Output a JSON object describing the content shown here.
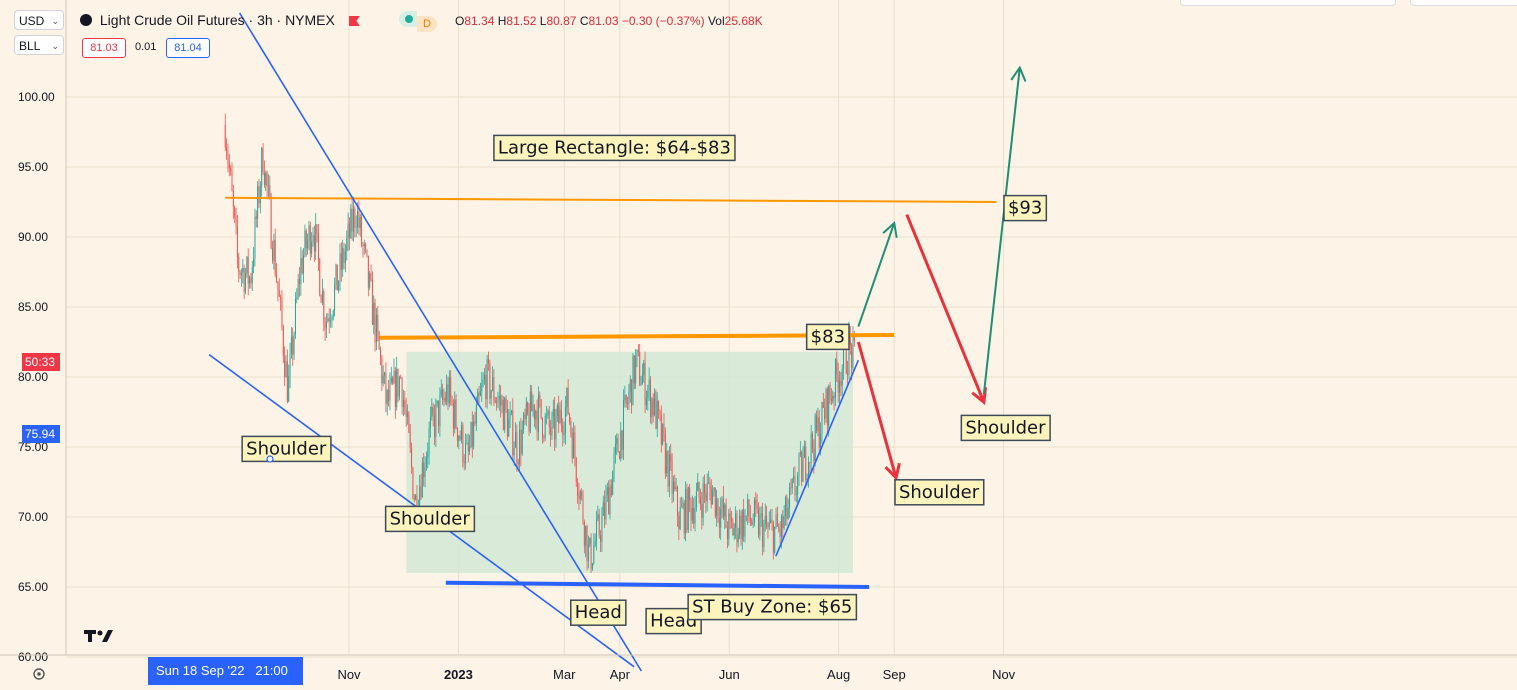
{
  "header": {
    "currency": "USD",
    "unit": "BLL",
    "symbol_title": "Light Crude Oil Futures · 3h · NYMEX",
    "market_badge": "D",
    "ohlc": {
      "o_label": "O",
      "o": "81.34",
      "h_label": "H",
      "h": "81.52",
      "l_label": "L",
      "l": "80.87",
      "c_label": "C",
      "c": "81.03",
      "change": "−0.30 (−0.37%)",
      "vol_label": "Vol",
      "vol": "25.68K"
    },
    "bid": "81.03",
    "spread": "0.01",
    "ask": "81.04"
  },
  "price_tags": {
    "countdown": "50:33",
    "line_value": "75.94"
  },
  "crosshair_date": "Sun 18 Sep '22",
  "crosshair_time": "21:00",
  "colors": {
    "up": "#26a69a",
    "down": "#ef5350",
    "orange": "#ff9800",
    "blue": "#2962ff",
    "green_arrow": "#1f8f74",
    "red_arrow": "#e8323c",
    "zone_fill": "#d2e8d6",
    "label_fill": "#fdf3bd"
  },
  "chart_data": {
    "type": "candlestick",
    "title": "Light Crude Oil Futures · 3h · NYMEX",
    "ylim": [
      59,
      103
    ],
    "yticks": [
      60,
      65,
      70,
      75,
      80,
      85,
      90,
      95,
      100
    ],
    "ytick_labels": [
      "60.00",
      "65.00",
      "70.00",
      "75.00",
      "80.00",
      "85.00",
      "90.00",
      "95.00",
      "100.00"
    ],
    "xtick_labels": [
      "Nov",
      "2023",
      "Mar",
      "Apr",
      "Jun",
      "Aug",
      "Sep",
      "Nov"
    ],
    "price_path": [
      {
        "date": "2022-08-24",
        "price": 98
      },
      {
        "date": "2022-08-31",
        "price": 88
      },
      {
        "date": "2022-09-07",
        "price": 87
      },
      {
        "date": "2022-09-14",
        "price": 96
      },
      {
        "date": "2022-09-21",
        "price": 88
      },
      {
        "date": "2022-09-28",
        "price": 79
      },
      {
        "date": "2022-10-05",
        "price": 88
      },
      {
        "date": "2022-10-12",
        "price": 91
      },
      {
        "date": "2022-10-19",
        "price": 84
      },
      {
        "date": "2022-10-26",
        "price": 87
      },
      {
        "date": "2022-11-05",
        "price": 92
      },
      {
        "date": "2022-11-14",
        "price": 85
      },
      {
        "date": "2022-11-22",
        "price": 78
      },
      {
        "date": "2022-11-30",
        "price": 80
      },
      {
        "date": "2022-12-08",
        "price": 71
      },
      {
        "date": "2022-12-16",
        "price": 76
      },
      {
        "date": "2022-12-26",
        "price": 79
      },
      {
        "date": "2023-01-06",
        "price": 74
      },
      {
        "date": "2023-01-16",
        "price": 80
      },
      {
        "date": "2023-01-25",
        "price": 78
      },
      {
        "date": "2023-02-03",
        "price": 75
      },
      {
        "date": "2023-02-12",
        "price": 78
      },
      {
        "date": "2023-02-22",
        "price": 76
      },
      {
        "date": "2023-03-03",
        "price": 78
      },
      {
        "date": "2023-03-15",
        "price": 67
      },
      {
        "date": "2023-03-23",
        "price": 70
      },
      {
        "date": "2023-03-31",
        "price": 75
      },
      {
        "date": "2023-04-10",
        "price": 81
      },
      {
        "date": "2023-04-20",
        "price": 78
      },
      {
        "date": "2023-05-04",
        "price": 70
      },
      {
        "date": "2023-05-12",
        "price": 71
      },
      {
        "date": "2023-05-22",
        "price": 72
      },
      {
        "date": "2023-06-01",
        "price": 69
      },
      {
        "date": "2023-06-12",
        "price": 70
      },
      {
        "date": "2023-06-22",
        "price": 69
      },
      {
        "date": "2023-06-30",
        "price": 69
      },
      {
        "date": "2023-07-10",
        "price": 73
      },
      {
        "date": "2023-07-20",
        "price": 76
      },
      {
        "date": "2023-07-31",
        "price": 80
      },
      {
        "date": "2023-08-07",
        "price": 82
      },
      {
        "date": "2023-08-10",
        "price": 81.03
      }
    ],
    "horizontal_levels": [
      {
        "name": "upper_rect",
        "from": "2022-08-24",
        "to": "2023-10-28",
        "y1": 92.8,
        "y2": 92.5
      },
      {
        "name": "resistance_83",
        "from": "2022-11-18",
        "to": "2023-09-01",
        "y1": 82.8,
        "y2": 83.0
      },
      {
        "name": "support_65",
        "from": "2022-12-25",
        "to": "2023-08-18",
        "y1": 65.3,
        "y2": 65.0
      }
    ],
    "zone": {
      "from": "2022-12-03",
      "to": "2023-08-09",
      "y_low": 66,
      "y_high": 81.8
    },
    "trendlines": [
      {
        "from": [
          "2022-09-01",
          106
        ],
        "to": [
          "2023-04-13",
          59
        ]
      },
      {
        "from": [
          "2022-08-15",
          81.6
        ],
        "to": [
          "2023-04-09",
          59.3
        ]
      },
      {
        "from": [
          "2023-06-27",
          67.2
        ],
        "to": [
          "2023-08-12",
          81.2
        ]
      }
    ],
    "projections": [
      {
        "kind": "up",
        "from": [
          "2023-08-12",
          83.6
        ],
        "to": [
          "2023-09-01",
          91
        ]
      },
      {
        "kind": "down",
        "from": [
          "2023-08-12",
          82.5
        ],
        "to": [
          "2023-09-02",
          72.8
        ]
      },
      {
        "kind": "down",
        "from": [
          "2023-09-08",
          91.6
        ],
        "to": [
          "2023-10-21",
          78.2
        ]
      },
      {
        "kind": "up",
        "from": [
          "2023-10-21",
          78.8
        ],
        "to": [
          "2023-11-10",
          102.1
        ]
      }
    ],
    "annotations": [
      {
        "text": "Large Rectangle: $64-$83",
        "date": "2023-03-29",
        "price": 96.4
      },
      {
        "text": "$83",
        "date": "2023-07-26",
        "price": 82.9
      },
      {
        "text": "$93",
        "date": "2023-11-13",
        "price": 92.1
      },
      {
        "text": "Shoulder",
        "date": "2022-09-27",
        "price": 74.9
      },
      {
        "text": "Shoulder",
        "date": "2022-12-16",
        "price": 69.9
      },
      {
        "text": "Head",
        "date": "2023-03-20",
        "price": 63.2
      },
      {
        "text": "Head",
        "date": "2023-05-01",
        "price": 62.6
      },
      {
        "text": "ST Buy Zone: $65",
        "date": "2023-06-25",
        "price": 63.6
      },
      {
        "text": "Shoulder",
        "date": "2023-09-26",
        "price": 71.8
      },
      {
        "text": "Shoulder",
        "date": "2023-11-02",
        "price": 76.4
      }
    ]
  }
}
